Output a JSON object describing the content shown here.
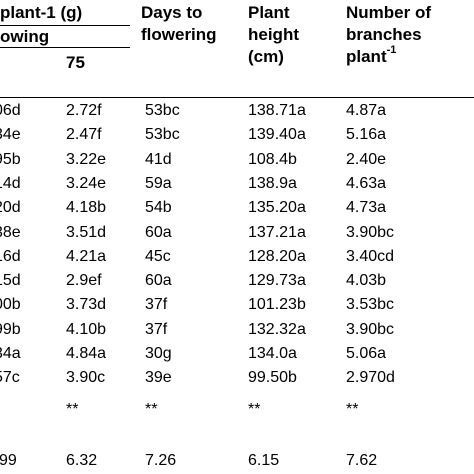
{
  "header": {
    "group_label_1": "plant-1 (g)",
    "group_label_2": "owing",
    "col_75": "75",
    "days_l1": "Days to",
    "days_l2": "flowering",
    "height_l1": "Plant",
    "height_l2": "height",
    "height_l3": "(cm)",
    "branches_l1": "Number of",
    "branches_l2": "branches",
    "branches_l3": "plant",
    "branches_sup": "-1"
  },
  "rows": [
    {
      "partial": "06d",
      "c75": "2.72f",
      "days": "53bc",
      "height": "138.71a",
      "branches": "4.87a"
    },
    {
      "partial": "34e",
      "c75": "2.47f",
      "days": "53bc",
      "height": "139.40a",
      "branches": "5.16a"
    },
    {
      "partial": "95b",
      "c75": "3.22e",
      "days": "41d",
      "height": "108.4b",
      "branches": "2.40e"
    },
    {
      "partial": "14d",
      "c75": "3.24e",
      "days": "59a",
      "height": "138.9a",
      "branches": "4.63a"
    },
    {
      "partial": "20d",
      "c75": "4.18b",
      "days": "54b",
      "height": "135.20a",
      "branches": "4.73a"
    },
    {
      "partial": "38e",
      "c75": "3.51d",
      "days": "60a",
      "height": "137.21a",
      "branches": "3.90bc"
    },
    {
      "partial": "16d",
      "c75": "4.21a",
      "days": "45c",
      "height": "128.20a",
      "branches": "3.40cd"
    },
    {
      "partial": "15d",
      "c75": "2.9ef",
      "days": "60a",
      "height": "129.73a",
      "branches": "4.03b"
    },
    {
      "partial": "00b",
      "c75": "3.73d",
      "days": "37f",
      "height": "101.23b",
      "branches": "3.53bc"
    },
    {
      "partial": "99b",
      "c75": "4.10b",
      "days": "37f",
      "height": "132.32a",
      "branches": "3.90bc"
    },
    {
      "partial": "34a",
      "c75": "4.84a",
      "days": "30g",
      "height": "134.0a",
      "branches": "5.06a"
    },
    {
      "partial": "57c",
      "c75": "3.90c",
      "days": "39e",
      "height": "99.50b",
      "branches": "2.970d"
    }
  ],
  "significance": {
    "c75": "**",
    "days": "**",
    "height": "**",
    "branches": "**"
  },
  "cv": {
    "partial": "99",
    "c75": "6.32",
    "days": "7.26",
    "height": "6.15",
    "branches": "7.62"
  }
}
